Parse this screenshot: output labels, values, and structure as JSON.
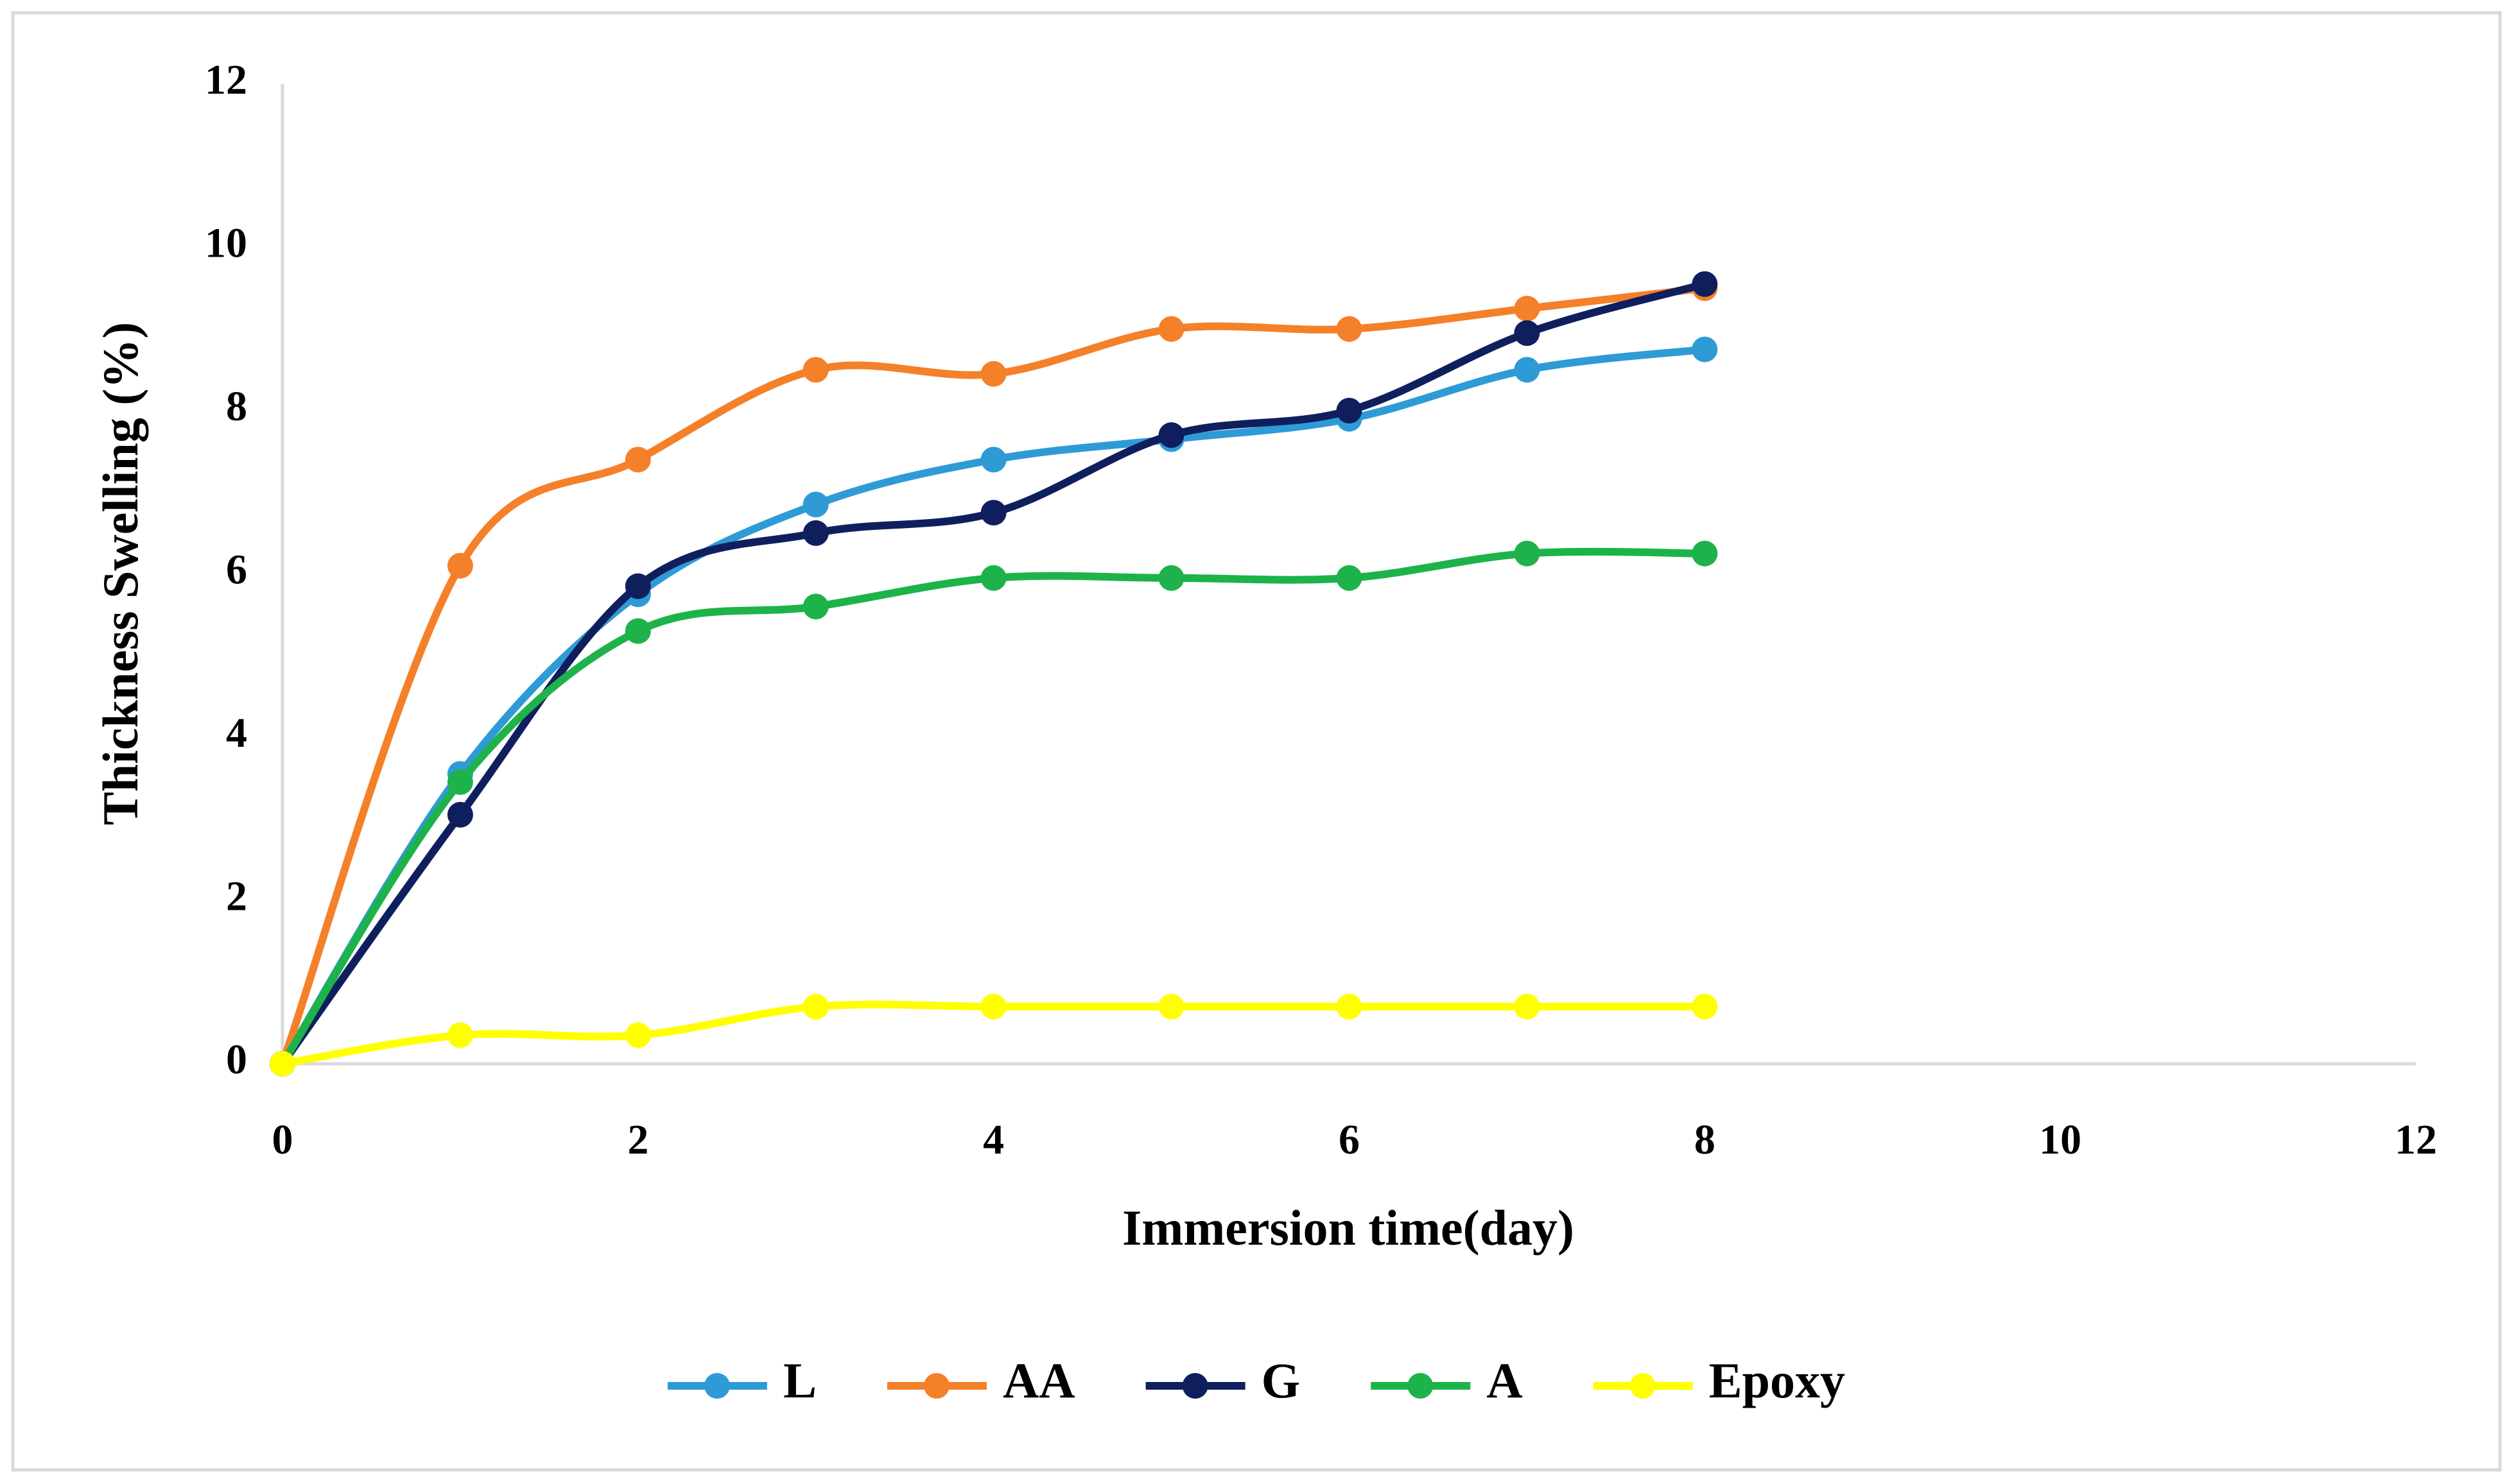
{
  "chart_data": {
    "type": "line",
    "smooth": true,
    "markers": true,
    "x_label": "Immersion time(day)",
    "y_label": "Thickness Swelling (%)",
    "x": [
      0,
      1,
      2,
      3,
      4,
      5,
      6,
      7,
      8
    ],
    "series": [
      {
        "name": "L",
        "color": "#2e9bd6",
        "values": [
          0,
          3.55,
          5.75,
          6.85,
          7.4,
          7.65,
          7.9,
          8.5,
          8.75
        ]
      },
      {
        "name": "AA",
        "color": "#f5802a",
        "values": [
          0,
          6.1,
          7.4,
          8.5,
          8.45,
          9.0,
          9.0,
          9.25,
          9.5
        ]
      },
      {
        "name": "G",
        "color": "#0f1f5e",
        "values": [
          0,
          3.05,
          5.85,
          6.5,
          6.75,
          7.7,
          8.0,
          8.95,
          9.55
        ]
      },
      {
        "name": "A",
        "color": "#1db34a",
        "values": [
          0,
          3.45,
          5.3,
          5.6,
          5.95,
          5.95,
          5.95,
          6.25,
          6.25
        ]
      },
      {
        "name": "Epoxy",
        "color": "#ffff00",
        "values": [
          0,
          0.35,
          0.35,
          0.7,
          0.7,
          0.7,
          0.7,
          0.7,
          0.7
        ]
      }
    ],
    "xlim": [
      0,
      12
    ],
    "xticks": [
      0,
      2,
      4,
      6,
      8,
      10,
      12
    ],
    "ylim": [
      0,
      12
    ],
    "yticks": [
      0,
      2,
      4,
      6,
      8,
      10,
      12
    ],
    "grid": false,
    "legend": "bottom"
  }
}
